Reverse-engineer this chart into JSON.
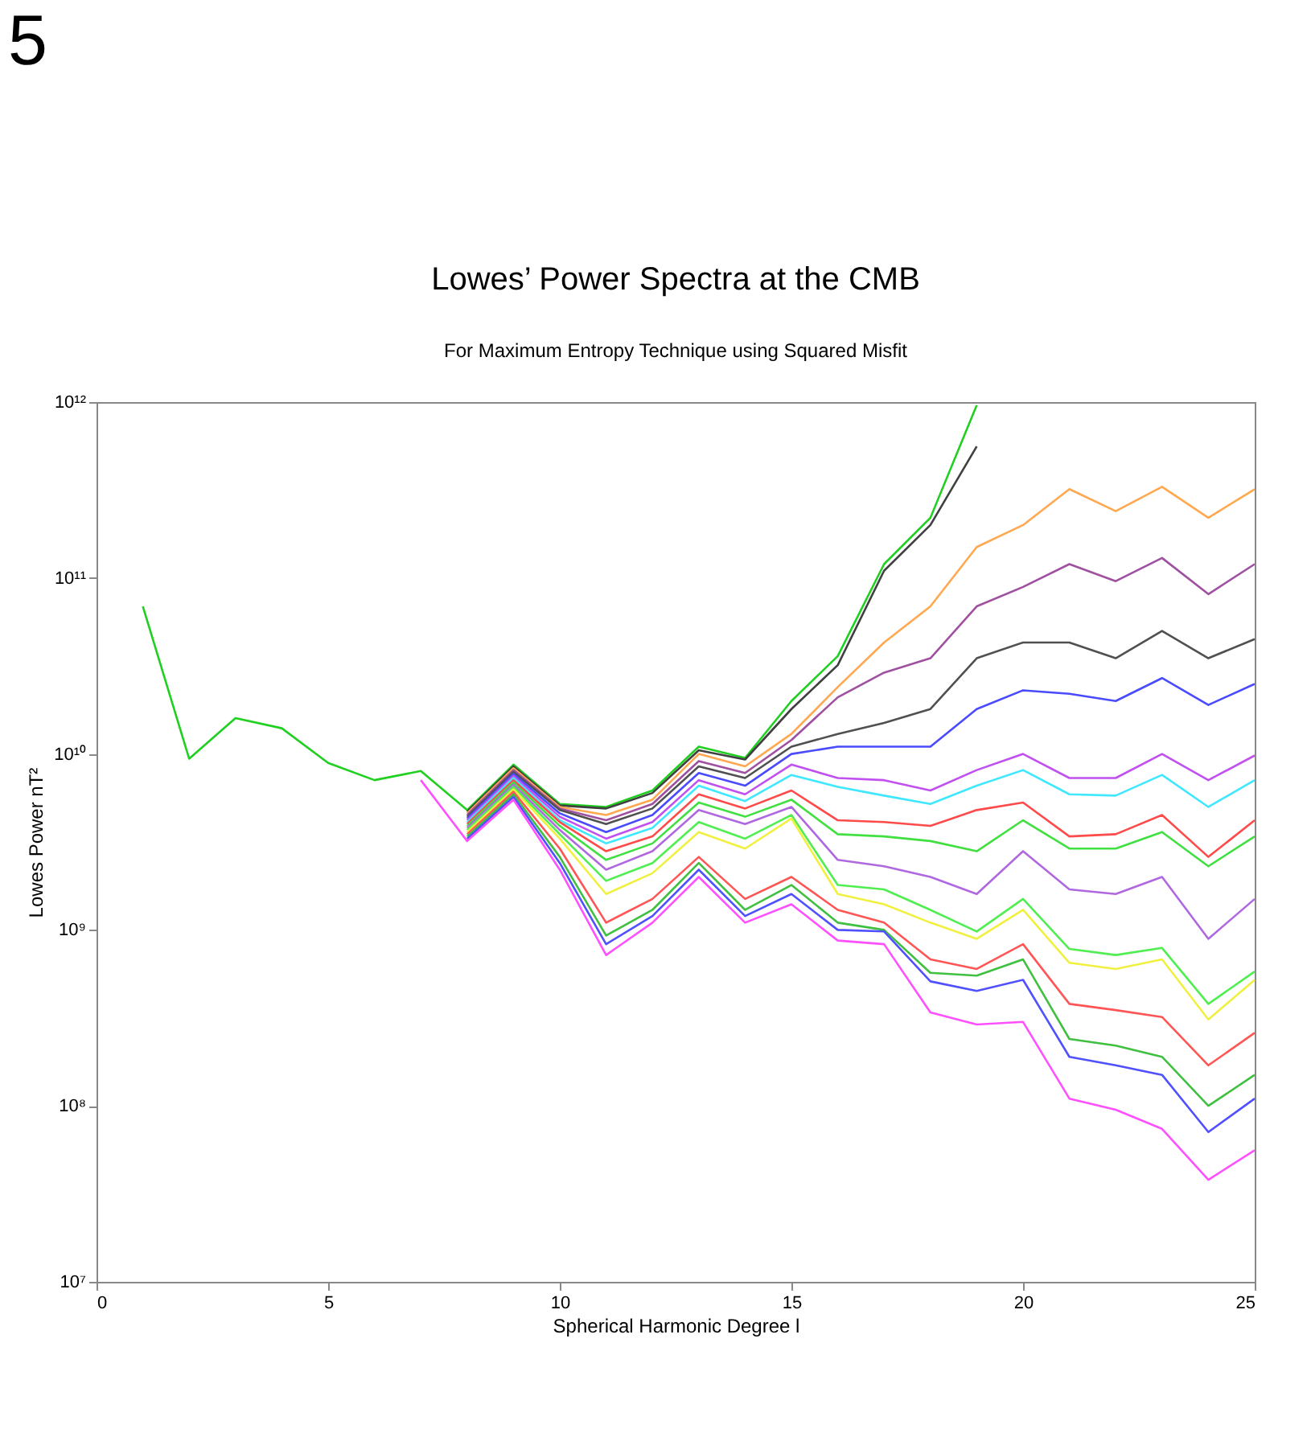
{
  "chart_data": {
    "type": "line",
    "title": "Lowes’ Power Spectra at the CMB",
    "subtitle": "For Maximum Entropy Technique using Squared Misfit",
    "xlabel": "Spherical Harmonic Degree l",
    "ylabel": "Lowes Power nT²",
    "annotations": [
      "5"
    ],
    "x": [
      1,
      2,
      3,
      4,
      5,
      6,
      7,
      8,
      9,
      10,
      11,
      12,
      13,
      14,
      15,
      16,
      17,
      18,
      19,
      20,
      21,
      22,
      23,
      24,
      25
    ],
    "xlim": [
      0,
      25
    ],
    "xticks": [
      0,
      5,
      10,
      15,
      20,
      25
    ],
    "ylim": [
      10000000.0,
      1000000000000.0
    ],
    "log": true,
    "yticks": [
      {
        "value": 10000000.0,
        "label": "10⁷"
      },
      {
        "value": 100000000.0,
        "label": "10⁸"
      },
      {
        "value": 1000000000.0,
        "label": "10⁹"
      },
      {
        "value": 10000000000.0,
        "label": "10¹⁰"
      },
      {
        "value": 100000000000.0,
        "label": "10¹¹"
      },
      {
        "value": 1000000000000.0,
        "label": "10¹²"
      }
    ],
    "grid": false,
    "legend": false,
    "marker": "none",
    "line_style": "solid",
    "series": [
      {
        "color": "#20d020",
        "values": [
          69000000000.0,
          9400000000.0,
          16000000000.0,
          14000000000.0,
          8900000000.0,
          7100000000.0,
          8000000000.0,
          4800000000.0,
          8700000000.0,
          5200000000.0,
          5000000000.0,
          6200000000.0,
          11000000000.0,
          9500000000.0,
          20000000000.0,
          36000000000.0,
          120000000000.0,
          220000000000.0,
          960000000000.0,
          null,
          null,
          null,
          null,
          null,
          null
        ]
      },
      {
        "color": "#404040",
        "values": [
          null,
          null,
          null,
          null,
          null,
          null,
          null,
          4700000000.0,
          8500000000.0,
          5100000000.0,
          4900000000.0,
          6000000000.0,
          10500000000.0,
          9300000000.0,
          18000000000.0,
          32000000000.0,
          110000000000.0,
          200000000000.0,
          560000000000.0,
          null,
          null,
          null,
          null,
          null,
          null
        ]
      },
      {
        "color": "#ffa850",
        "values": [
          null,
          null,
          null,
          null,
          null,
          null,
          null,
          4600000000.0,
          8300000000.0,
          5000000000.0,
          4500000000.0,
          5500000000.0,
          10000000000.0,
          8500000000.0,
          13000000000.0,
          24000000000.0,
          43000000000.0,
          69000000000.0,
          150000000000.0,
          200000000000.0,
          320000000000.0,
          240000000000.0,
          330000000000.0,
          220000000000.0,
          320000000000.0
        ]
      },
      {
        "color": "#a050a0",
        "values": [
          null,
          null,
          null,
          null,
          null,
          null,
          null,
          4500000000.0,
          8100000000.0,
          4900000000.0,
          4200000000.0,
          5200000000.0,
          9100000000.0,
          7800000000.0,
          12000000000.0,
          21000000000.0,
          29000000000.0,
          35000000000.0,
          69000000000.0,
          89000000000.0,
          120000000000.0,
          96000000000.0,
          130000000000.0,
          81000000000.0,
          120000000000.0
        ]
      },
      {
        "color": "#505050",
        "values": [
          null,
          null,
          null,
          null,
          null,
          null,
          null,
          4400000000.0,
          7900000000.0,
          4800000000.0,
          4000000000.0,
          4900000000.0,
          8500000000.0,
          7300000000.0,
          11000000000.0,
          13000000000.0,
          15000000000.0,
          18000000000.0,
          35000000000.0,
          43000000000.0,
          43000000000.0,
          35000000000.0,
          50000000000.0,
          35000000000.0,
          45000000000.0
        ]
      },
      {
        "color": "#4a4aff",
        "values": [
          null,
          null,
          null,
          null,
          null,
          null,
          null,
          4300000000.0,
          7700000000.0,
          4600000000.0,
          3600000000.0,
          4500000000.0,
          7800000000.0,
          6600000000.0,
          10000000000.0,
          11000000000.0,
          11000000000.0,
          11000000000.0,
          18000000000.0,
          23000000000.0,
          22000000000.0,
          20000000000.0,
          27000000000.0,
          19000000000.0,
          25000000000.0
        ]
      },
      {
        "color": "#c050f0",
        "values": [
          null,
          null,
          null,
          null,
          null,
          null,
          null,
          4200000000.0,
          7500000000.0,
          4400000000.0,
          3300000000.0,
          4100000000.0,
          7100000000.0,
          5900000000.0,
          8700000000.0,
          7300000000.0,
          7100000000.0,
          6200000000.0,
          8100000000.0,
          10000000000.0,
          7300000000.0,
          7300000000.0,
          10000000000.0,
          7100000000.0,
          9800000000.0
        ]
      },
      {
        "color": "#40e8ff",
        "values": [
          null,
          null,
          null,
          null,
          null,
          null,
          null,
          4100000000.0,
          7300000000.0,
          4200000000.0,
          3100000000.0,
          3800000000.0,
          6600000000.0,
          5400000000.0,
          7600000000.0,
          6500000000.0,
          5800000000.0,
          5200000000.0,
          6600000000.0,
          8100000000.0,
          5900000000.0,
          5800000000.0,
          7600000000.0,
          5000000000.0,
          7100000000.0
        ]
      },
      {
        "color": "#ff4a4a",
        "values": [
          null,
          null,
          null,
          null,
          null,
          null,
          null,
          4000000000.0,
          7100000000.0,
          4100000000.0,
          2800000000.0,
          3400000000.0,
          5900000000.0,
          4900000000.0,
          6200000000.0,
          4200000000.0,
          4100000000.0,
          3900000000.0,
          4800000000.0,
          5300000000.0,
          3400000000.0,
          3500000000.0,
          4500000000.0,
          2600000000.0,
          4200000000.0
        ]
      },
      {
        "color": "#40e040",
        "values": [
          null,
          null,
          null,
          null,
          null,
          null,
          null,
          3900000000.0,
          6900000000.0,
          3900000000.0,
          2500000000.0,
          3100000000.0,
          5300000000.0,
          4400000000.0,
          5500000000.0,
          3500000000.0,
          3400000000.0,
          3200000000.0,
          2800000000.0,
          4200000000.0,
          2900000000.0,
          2900000000.0,
          3600000000.0,
          2300000000.0,
          3400000000.0
        ]
      },
      {
        "color": "#b068e0",
        "values": [
          null,
          null,
          null,
          null,
          null,
          null,
          null,
          3800000000.0,
          6700000000.0,
          3700000000.0,
          2200000000.0,
          2800000000.0,
          4800000000.0,
          4000000000.0,
          5000000000.0,
          2500000000.0,
          2300000000.0,
          2000000000.0,
          1600000000.0,
          2800000000.0,
          1700000000.0,
          1600000000.0,
          2000000000.0,
          890000000.0,
          1500000000.0
        ]
      },
      {
        "color": "#50ee50",
        "values": [
          null,
          null,
          null,
          null,
          null,
          null,
          null,
          3700000000.0,
          6500000000.0,
          3500000000.0,
          1900000000.0,
          2400000000.0,
          4100000000.0,
          3300000000.0,
          4500000000.0,
          1800000000.0,
          1700000000.0,
          1300000000.0,
          980000000.0,
          1500000000.0,
          780000000.0,
          720000000.0,
          790000000.0,
          380000000.0,
          580000000.0
        ]
      },
      {
        "color": "#f0f040",
        "values": [
          null,
          null,
          null,
          null,
          null,
          null,
          null,
          3600000000.0,
          6300000000.0,
          3300000000.0,
          1600000000.0,
          2100000000.0,
          3600000000.0,
          2900000000.0,
          4300000000.0,
          1600000000.0,
          1400000000.0,
          1100000000.0,
          890000000.0,
          1300000000.0,
          650000000.0,
          600000000.0,
          680000000.0,
          310000000.0,
          520000000.0
        ]
      },
      {
        "color": "#ff5555",
        "values": [
          null,
          null,
          null,
          null,
          null,
          null,
          null,
          3500000000.0,
          6100000000.0,
          2900000000.0,
          1100000000.0,
          1500000000.0,
          2600000000.0,
          1500000000.0,
          2000000000.0,
          1300000000.0,
          1100000000.0,
          680000000.0,
          600000000.0,
          830000000.0,
          380000000.0,
          350000000.0,
          320000000.0,
          170000000.0,
          260000000.0
        ]
      },
      {
        "color": "#40c040",
        "values": [
          null,
          null,
          null,
          null,
          null,
          null,
          null,
          3400000000.0,
          5900000000.0,
          2600000000.0,
          930000000.0,
          1300000000.0,
          2400000000.0,
          1300000000.0,
          1800000000.0,
          1100000000.0,
          1000000000.0,
          570000000.0,
          550000000.0,
          680000000.0,
          240000000.0,
          220000000.0,
          190000000.0,
          100000000.0,
          150000000.0
        ]
      },
      {
        "color": "#5050ff",
        "values": [
          null,
          null,
          null,
          null,
          null,
          null,
          null,
          3300000000.0,
          5700000000.0,
          2400000000.0,
          830000000.0,
          1200000000.0,
          2200000000.0,
          1200000000.0,
          1600000000.0,
          1000000000.0,
          980000000.0,
          510000000.0,
          450000000.0,
          520000000.0,
          190000000.0,
          170000000.0,
          150000000.0,
          71000000.0,
          110000000.0
        ]
      },
      {
        "color": "#ff50ff",
        "values": [
          null,
          null,
          null,
          null,
          null,
          null,
          7100000000.0,
          3200000000.0,
          5500000000.0,
          2200000000.0,
          720000000.0,
          1100000000.0,
          2000000000.0,
          1100000000.0,
          1400000000.0,
          870000000.0,
          830000000.0,
          340000000.0,
          290000000.0,
          300000000.0,
          110000000.0,
          95000000.0,
          74000000.0,
          38000000.0,
          56000000.0
        ]
      }
    ]
  }
}
